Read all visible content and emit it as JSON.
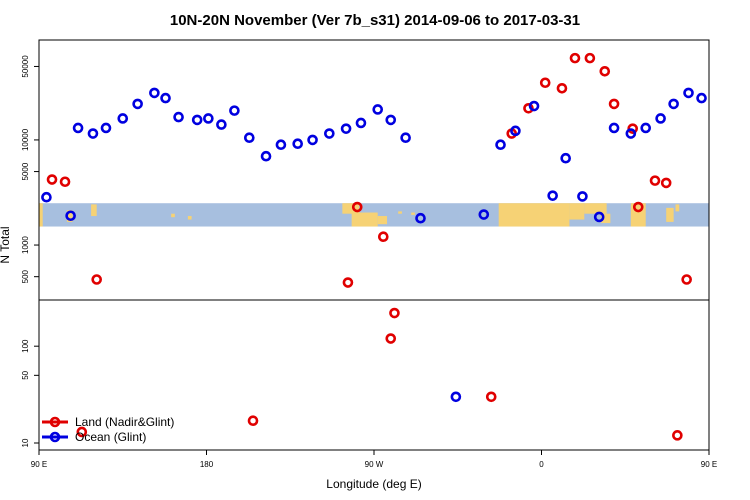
{
  "chart_data": {
    "type": "scatter",
    "title": "10N-20N November (Ver 7b_s31)   2014-09-06 to 2017-03-31",
    "xlabel": "Longitude (deg E)",
    "ylabel": "N Total",
    "y_scale": "log",
    "y_segments": [
      {
        "from": 10,
        "to": 300
      },
      {
        "from": 300,
        "to": 80000
      }
    ],
    "xlim": [
      90,
      450
    ],
    "x_ticks": [
      {
        "value": 90,
        "label": "90 E"
      },
      {
        "value": 180,
        "label": "180"
      },
      {
        "value": 270,
        "label": "90 W"
      },
      {
        "value": 360,
        "label": "0"
      },
      {
        "value": 450,
        "label": "90 E"
      }
    ],
    "y_ticks": [
      {
        "value": 10,
        "label": "10"
      },
      {
        "value": 50,
        "label": "50"
      },
      {
        "value": 100,
        "label": "100"
      },
      {
        "value": 500,
        "label": "500"
      },
      {
        "value": 1000,
        "label": "1000"
      },
      {
        "value": 5000,
        "label": "5000"
      },
      {
        "value": 10000,
        "label": "10000"
      },
      {
        "value": 50000,
        "label": "50000"
      }
    ],
    "map_band_range": [
      1500,
      2500
    ],
    "legend_position": "bottom-left",
    "series": [
      {
        "name": "Land (Nadir&Glint)",
        "color": "#e00000",
        "points": [
          {
            "x": 97,
            "y": 4200
          },
          {
            "x": 104,
            "y": 4000
          },
          {
            "x": 113,
            "y": 13
          },
          {
            "x": 121,
            "y": 470
          },
          {
            "x": 205,
            "y": 17
          },
          {
            "x": 256,
            "y": 440
          },
          {
            "x": 261,
            "y": 2300
          },
          {
            "x": 275,
            "y": 1200
          },
          {
            "x": 279,
            "y": 120
          },
          {
            "x": 281,
            "y": 220
          },
          {
            "x": 333,
            "y": 30
          },
          {
            "x": 344,
            "y": 11500
          },
          {
            "x": 353,
            "y": 20000
          },
          {
            "x": 362,
            "y": 35000
          },
          {
            "x": 371,
            "y": 31000
          },
          {
            "x": 378,
            "y": 60000
          },
          {
            "x": 386,
            "y": 60000
          },
          {
            "x": 394,
            "y": 45000
          },
          {
            "x": 399,
            "y": 22000
          },
          {
            "x": 409,
            "y": 12800
          },
          {
            "x": 412,
            "y": 2300
          },
          {
            "x": 421,
            "y": 4100
          },
          {
            "x": 427,
            "y": 3900
          },
          {
            "x": 433,
            "y": 12
          },
          {
            "x": 438,
            "y": 470
          }
        ]
      },
      {
        "name": "Ocean (Glint)",
        "color": "#0000e0",
        "points": [
          {
            "x": 94,
            "y": 2850
          },
          {
            "x": 107,
            "y": 1900
          },
          {
            "x": 111,
            "y": 13000
          },
          {
            "x": 119,
            "y": 11500
          },
          {
            "x": 126,
            "y": 13000
          },
          {
            "x": 135,
            "y": 16000
          },
          {
            "x": 143,
            "y": 22000
          },
          {
            "x": 152,
            "y": 28000
          },
          {
            "x": 158,
            "y": 25000
          },
          {
            "x": 165,
            "y": 16500
          },
          {
            "x": 175,
            "y": 15500
          },
          {
            "x": 181,
            "y": 16000
          },
          {
            "x": 188,
            "y": 14000
          },
          {
            "x": 195,
            "y": 19000
          },
          {
            "x": 203,
            "y": 10500
          },
          {
            "x": 212,
            "y": 7000
          },
          {
            "x": 220,
            "y": 9000
          },
          {
            "x": 229,
            "y": 9200
          },
          {
            "x": 237,
            "y": 10000
          },
          {
            "x": 246,
            "y": 11500
          },
          {
            "x": 255,
            "y": 12800
          },
          {
            "x": 263,
            "y": 14500
          },
          {
            "x": 272,
            "y": 19500
          },
          {
            "x": 279,
            "y": 15500
          },
          {
            "x": 287,
            "y": 10500
          },
          {
            "x": 295,
            "y": 1800
          },
          {
            "x": 314,
            "y": 30
          },
          {
            "x": 329,
            "y": 1950
          },
          {
            "x": 338,
            "y": 9000
          },
          {
            "x": 346,
            "y": 12200
          },
          {
            "x": 356,
            "y": 21000
          },
          {
            "x": 366,
            "y": 2950
          },
          {
            "x": 373,
            "y": 6700
          },
          {
            "x": 382,
            "y": 2900
          },
          {
            "x": 391,
            "y": 1850
          },
          {
            "x": 399,
            "y": 13000
          },
          {
            "x": 408,
            "y": 11500
          },
          {
            "x": 416,
            "y": 13000
          },
          {
            "x": 424,
            "y": 16000
          },
          {
            "x": 431,
            "y": 22000
          },
          {
            "x": 439,
            "y": 28000
          },
          {
            "x": 446,
            "y": 25000
          }
        ]
      }
    ]
  }
}
